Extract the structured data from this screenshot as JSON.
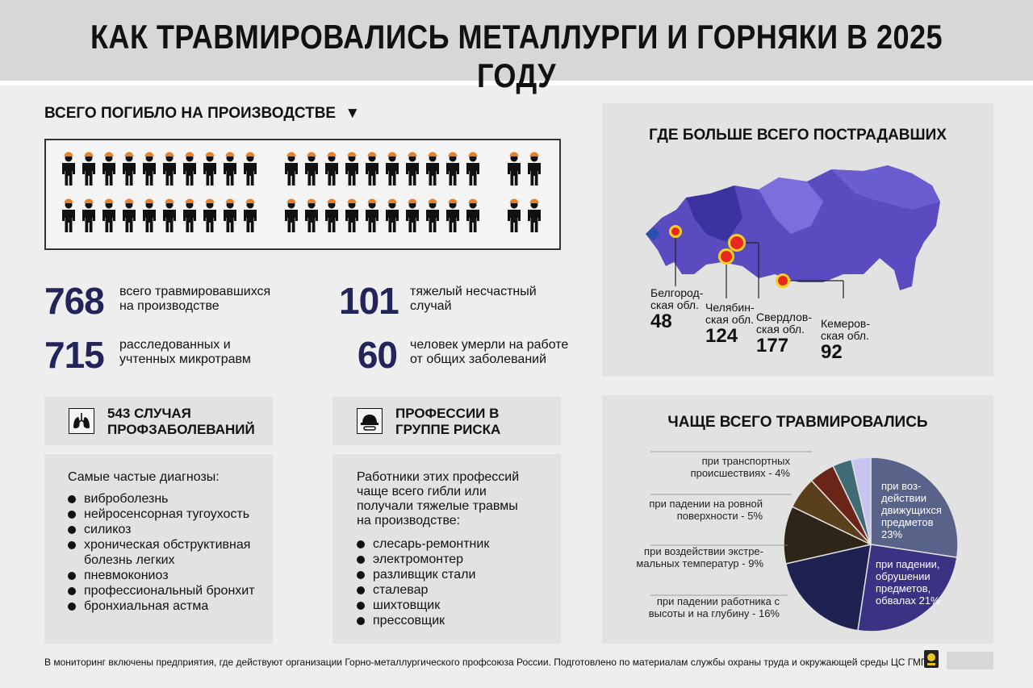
{
  "title": "КАК ТРАВМИРОВАЛИСЬ МЕТАЛЛУРГИ И ГОРНЯКИ В 2025 ГОДУ",
  "deaths": {
    "heading": "ВСЕГО ПОГИБЛО НА ПРОИЗВОДСТВЕ",
    "arrow": "▼",
    "count": 44,
    "figure_color": "#111111",
    "helmet_color": "#e8822a"
  },
  "stats": [
    {
      "value": "768",
      "text": "всего травмировавшихся на производстве"
    },
    {
      "value": "715",
      "text": "расследованных и учтенных микротравм"
    },
    {
      "value": "101",
      "text": "тяжелый несчастный случай"
    },
    {
      "value": "60",
      "text": "человек умерли на работе от общих заболеваний"
    }
  ],
  "diseases": {
    "title": "543 СЛУЧАЯ ПРОФЗАБОЛЕВАНИЙ",
    "icon": "lungs-icon",
    "intro": "Самые частые диагнозы:",
    "items": [
      "виброболезнь",
      "нейросенсорная тугоухость",
      "силикоз",
      "хроническая обструктивная болезнь легких",
      "пневмокониоз",
      "профессиональный бронхит",
      "бронхиальная астма"
    ]
  },
  "professions": {
    "title": "ПРОФЕССИИ В ГРУППЕ РИСКА",
    "icon": "hardhat-icon",
    "intro": "Работники этих профессий чаще всего гибли или получали тяжелые травмы на производстве:",
    "items": [
      "слесарь-ремонтник",
      "электромонтер",
      "разливщик стали",
      "сталевар",
      "шихтовщик",
      "прессовщик"
    ]
  },
  "map": {
    "title": "ГДЕ БОЛЬШЕ ВСЕГО ПОСТРАДАВШИХ",
    "regions": [
      {
        "name": "Белгород-ская обл.",
        "value": "48"
      },
      {
        "name": "Челябин-ская обл.",
        "value": "124"
      },
      {
        "name": "Свердлов-ская обл.",
        "value": "177"
      },
      {
        "name": "Кемеров-ская обл.",
        "value": "92"
      }
    ],
    "colors": {
      "land": "#5a4cc0",
      "land_light": "#7b6fdc",
      "land_dark": "#3d33a0",
      "marker": "#e8281f",
      "marker_ring": "#f4d21f"
    }
  },
  "injuries": {
    "title": "ЧАЩЕ ВСЕГО ТРАВМИРОВАЛИСЬ",
    "chart_data": {
      "type": "pie",
      "slices": [
        {
          "label": "при воз-действии движущихся предметов",
          "pct": "23%",
          "value": 23,
          "color": "#596389"
        },
        {
          "label": "при падении, обрушении предметов, обвалах",
          "pct": "21%",
          "value": 21,
          "color": "#3a3282"
        },
        {
          "label": "при падении работника с высоты и на глубину",
          "pct": "16%",
          "value": 16,
          "color": "#1f2250"
        },
        {
          "label": "при воздействии экстре-мальных температур",
          "pct": "9%",
          "value": 9,
          "color": "#2e2418"
        },
        {
          "label": "при падении на ровной поверхности",
          "pct": "5%",
          "value": 5,
          "color": "#5a3f1c"
        },
        {
          "label": "при транспортных происшествиях",
          "pct": "4%",
          "value": 4,
          "color": "#6b2418"
        },
        {
          "label": "",
          "pct": "",
          "value": 3,
          "color": "#3f6c74"
        },
        {
          "label": "",
          "pct": "",
          "value": 3,
          "color": "#c8c4f0"
        }
      ],
      "outside_labels": [
        "при транспортных происшествиях - 4%",
        "при падении на ровной поверхности - 5%",
        "при воздействии экстре-мальных температур - 9%",
        "при падении работника с высоты и на глубину - 16%"
      ],
      "inside_labels": [
        "при воз-действии движущихся предметов 23%",
        "при падении, обрушении предметов, обвалах 21%"
      ]
    }
  },
  "footer": "В мониторинг включены предприятия, где действуют организации Горно-металлургического профсоюза России. Подготовлено по материалам службы охраны труда и окружающей среды ЦС ГМПР"
}
